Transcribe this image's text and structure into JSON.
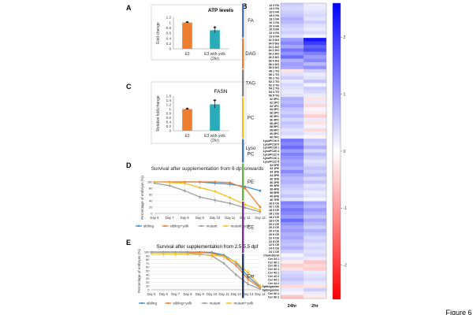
{
  "figure_label": "Figure 6",
  "chart_data": [
    {
      "panel": "A",
      "type": "bar",
      "title": "ATP levels",
      "ylabel": "Fold change",
      "ylim": [
        0,
        1.2
      ],
      "yticks": [
        "0",
        "0.2",
        "0.4",
        "0.6",
        "0.8",
        "1",
        "1.2"
      ],
      "categories": [
        "E3",
        "E3 with yolk (2hr)"
      ],
      "values": [
        1.0,
        0.71
      ],
      "errors": [
        0.01,
        0.1
      ],
      "colors": [
        "#ED7D31",
        "#2AABB8"
      ]
    },
    {
      "panel": "C",
      "type": "bar",
      "title": "FASN",
      "ylabel": "Relative fold change",
      "ylim": [
        0,
        1.6
      ],
      "yticks": [
        "0",
        "0.2",
        "0.4",
        "0.6",
        "0.8",
        "1",
        "1.2",
        "1.4",
        "1.6"
      ],
      "categories": [
        "E3",
        "E3 with yolk (2hr)"
      ],
      "values": [
        1.0,
        1.22
      ],
      "errors": [
        0.01,
        0.17
      ],
      "colors": [
        "#ED7D31",
        "#2AABB8"
      ]
    },
    {
      "panel": "D",
      "type": "line",
      "title": "Survival after supplementation from 6 dpf onwards",
      "ylabel": "Percentage of embryos (%)",
      "ylim": [
        0,
        100
      ],
      "yticks": [
        "0",
        "20",
        "40",
        "60",
        "80",
        "100"
      ],
      "categories": [
        "Day 6",
        "Day 7",
        "Day 8",
        "Day 9",
        "Day 10",
        "Day 11",
        "Day 12",
        "Day 13"
      ],
      "series": [
        {
          "name": "sibling",
          "color": "#3D8FD1",
          "values": [
            100,
            100,
            100,
            100,
            96,
            93,
            85,
            72
          ]
        },
        {
          "name": "sibling+yolk",
          "color": "#ED7D31",
          "values": [
            100,
            100,
            100,
            100,
            100,
            98,
            80,
            20
          ]
        },
        {
          "name": "mutant",
          "color": "#9E9E9E",
          "values": [
            96,
            88,
            72,
            52,
            42,
            32,
            18,
            5
          ]
        },
        {
          "name": "mutant+yolk",
          "color": "#F2C01E",
          "values": [
            100,
            98,
            96,
            82,
            70,
            50,
            28,
            10
          ]
        }
      ]
    },
    {
      "panel": "E",
      "type": "line",
      "title": "Survival after supplementation from 2.5-5.5 dpf",
      "ylabel": "Percentage of embryos (%)",
      "ylim": [
        0,
        100
      ],
      "yticks": [
        "0",
        "10",
        "20",
        "30",
        "40",
        "50",
        "60",
        "70",
        "80",
        "90",
        "100"
      ],
      "categories": [
        "Day 5",
        "Day 6",
        "Day 7",
        "Day 8",
        "Day 9",
        "Day 10",
        "Day 11",
        "Day 12",
        "Day 13",
        "Day 14"
      ],
      "series": [
        {
          "name": "sibling",
          "color": "#3D8FD1",
          "values": [
            100,
            100,
            100,
            100,
            100,
            99,
            92,
            72,
            35,
            8
          ]
        },
        {
          "name": "sibling+yolk",
          "color": "#ED7D31",
          "values": [
            100,
            100,
            100,
            100,
            99,
            97,
            88,
            65,
            28,
            5
          ]
        },
        {
          "name": "mutant",
          "color": "#9E9E9E",
          "values": [
            100,
            99,
            99,
            98,
            95,
            90,
            70,
            40,
            15,
            2
          ]
        },
        {
          "name": "mutant+yolk",
          "color": "#F2C01E",
          "values": [
            96,
            95,
            95,
            94,
            93,
            92,
            88,
            74,
            45,
            10
          ]
        }
      ]
    },
    {
      "panel": "B",
      "type": "heatmap",
      "columns": [
        "24hr",
        "2hr"
      ],
      "colorbar_ticks": [
        "2",
        "1",
        "0",
        "-1",
        "-2"
      ],
      "color_range": [
        -2.6,
        2.6
      ],
      "groups": [
        {
          "label": "FA",
          "color": "#4472C4",
          "start": 0,
          "end": 9
        },
        {
          "label": "DAG",
          "color": "#ED7D31",
          "start": 10,
          "end": 18
        },
        {
          "label": "TAG",
          "color": "#7F7F7F",
          "start": 19,
          "end": 26
        },
        {
          "label": "PC",
          "color": "#F2C01E",
          "start": 27,
          "end": 38
        },
        {
          "label": "Lyso PC",
          "color": "#4472C4",
          "start": 39,
          "end": 45
        },
        {
          "label": "PE",
          "color": "#70AD47",
          "start": 46,
          "end": 56
        },
        {
          "label": "CE",
          "color": "#7030A0",
          "start": 57,
          "end": 71
        },
        {
          "label": "Cer",
          "color": "#203864",
          "start": 72,
          "end": 84
        }
      ],
      "rows": [
        "12 0 FA",
        "14 0 FA",
        "16 0 FA",
        "18 0 FA",
        "18 1 FA",
        "20 1 FA",
        "20 4 FA",
        "20 5 FA",
        "22 4 FA",
        "22 6 FA",
        "32 0 DG",
        "34 0 DG",
        "34 1 DG",
        "34 2 DG",
        "36 2 DG",
        "36 3 DG",
        "36 4 DG",
        "38 4 DG",
        "38 5 DG",
        "48 1 TG",
        "50 1 TG",
        "50 2 TG",
        "52 2 TG",
        "52 3 TG",
        "54 2 TG",
        "54 3 TG",
        "56 5 TG",
        "32 0PC",
        "32 1PC",
        "34 1PC",
        "34 2PC",
        "36 2PC",
        "36 3PC",
        "36 4PC",
        "38 4PC",
        "38 5PC",
        "38 6PC",
        "40 6PC",
        "40 7PC",
        "LysoPC16 0",
        "LysoPC18 0",
        "LysoPC18 1",
        "LysoPC20 4",
        "LysoPC22 6",
        "LysoPC16 1",
        "LysoPC22 5",
        "32 0PE",
        "32 1PE",
        "34 1PE",
        "34 2PE",
        "36 1PE",
        "36 2PE",
        "36 3PE",
        "38 4PE",
        "38 5PE",
        "40 6PE",
        "40 7PE",
        "16 0 CE",
        "16 1 CE",
        "18 0 CE",
        "18 1 CE",
        "18 2 CE",
        "18 3 CE",
        "20 2 CE",
        "20 3 CE",
        "20 4 CE",
        "20 5 CE",
        "22 4 CE",
        "22 5 CE",
        "22 6 CE",
        "24 0 CE",
        "24 1 CE",
        "Cholesterol",
        "Cer 34 1",
        "Cer 36 1",
        "Cer 38 1",
        "Cer 40 1",
        "Cer 42 1",
        "Cer 42 2",
        "Cer 44 1",
        "Cer 44 2",
        "Sphinganine",
        "Sphingosine",
        "Cer 40 2",
        "Cer 36 2"
      ],
      "values": [
        [
          0.5,
          0.2
        ],
        [
          0.4,
          0.2
        ],
        [
          0.5,
          0.3
        ],
        [
          0.6,
          0.4
        ],
        [
          0.8,
          0.3
        ],
        [
          0.7,
          0.5
        ],
        [
          0.5,
          0.3
        ],
        [
          0.4,
          0.2
        ],
        [
          0.5,
          0.4
        ],
        [
          0.3,
          0.1
        ],
        [
          1.0,
          2.4
        ],
        [
          1.2,
          2.0
        ],
        [
          0.9,
          1.6
        ],
        [
          1.4,
          1.8
        ],
        [
          1.1,
          1.3
        ],
        [
          1.5,
          1.0
        ],
        [
          0.8,
          1.2
        ],
        [
          1.0,
          0.7
        ],
        [
          0.9,
          1.1
        ],
        [
          -0.3,
          0.5
        ],
        [
          0.3,
          0.2
        ],
        [
          0.5,
          0.3
        ],
        [
          0.2,
          0.6
        ],
        [
          0.4,
          0.1
        ],
        [
          0.3,
          0.5
        ],
        [
          0.2,
          0.4
        ],
        [
          0.3,
          0.2
        ],
        [
          0.8,
          -0.3
        ],
        [
          0.7,
          0.2
        ],
        [
          0.9,
          -0.4
        ],
        [
          0.6,
          0.1
        ],
        [
          0.5,
          -0.2
        ],
        [
          0.7,
          -0.5
        ],
        [
          0.4,
          0.2
        ],
        [
          0.6,
          -0.3
        ],
        [
          0.5,
          0.1
        ],
        [
          0.3,
          -0.4
        ],
        [
          0.4,
          0.2
        ],
        [
          0.2,
          -0.1
        ],
        [
          1.4,
          0.6
        ],
        [
          1.2,
          0.5
        ],
        [
          1.5,
          0.8
        ],
        [
          1.0,
          0.4
        ],
        [
          1.3,
          0.7
        ],
        [
          1.1,
          0.5
        ],
        [
          0.9,
          0.3
        ],
        [
          1.0,
          0.4
        ],
        [
          0.8,
          0.6
        ],
        [
          1.2,
          0.5
        ],
        [
          0.9,
          0.7
        ],
        [
          0.7,
          0.4
        ],
        [
          0.8,
          0.6
        ],
        [
          0.6,
          0.3
        ],
        [
          0.5,
          0.4
        ],
        [
          0.4,
          0.2
        ],
        [
          0.6,
          0.3
        ],
        [
          0.3,
          0.1
        ],
        [
          1.3,
          0.9
        ],
        [
          1.1,
          0.7
        ],
        [
          1.4,
          1.0
        ],
        [
          1.2,
          0.8
        ],
        [
          1.0,
          0.6
        ],
        [
          1.5,
          0.9
        ],
        [
          1.1,
          0.7
        ],
        [
          0.9,
          0.5
        ],
        [
          1.0,
          0.8
        ],
        [
          0.8,
          0.6
        ],
        [
          0.9,
          0.4
        ],
        [
          0.7,
          0.5
        ],
        [
          0.6,
          0.3
        ],
        [
          0.8,
          0.4
        ],
        [
          0.5,
          0.3
        ],
        [
          0.1,
          0.4
        ],
        [
          0.3,
          0.2
        ],
        [
          -0.2,
          -0.6
        ],
        [
          -0.5,
          -0.4
        ],
        [
          -0.3,
          -0.5
        ],
        [
          0.4,
          0.2
        ],
        [
          0.5,
          0.3
        ],
        [
          0.6,
          0.4
        ],
        [
          0.4,
          0.2
        ],
        [
          -0.4,
          -0.3
        ],
        [
          0.2,
          0.5
        ],
        [
          0.1,
          0.2
        ],
        [
          -0.6,
          -0.2
        ]
      ]
    }
  ]
}
